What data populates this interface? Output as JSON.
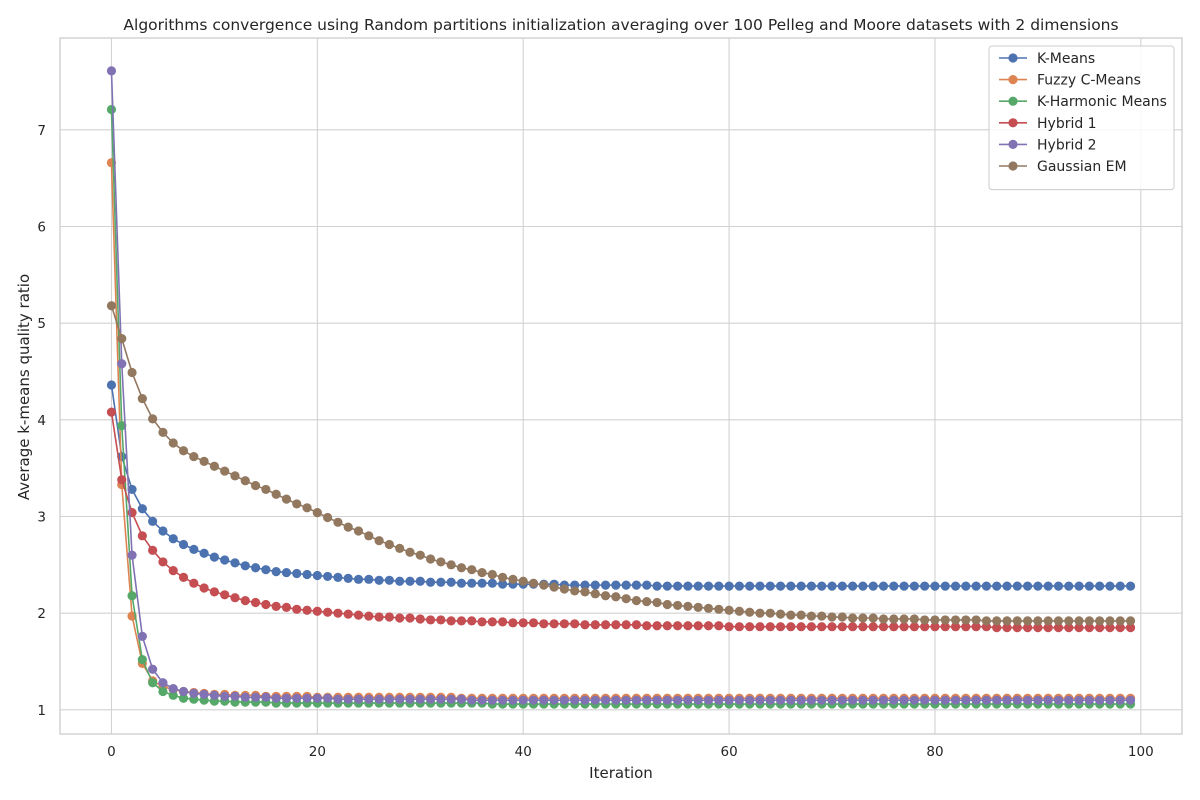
{
  "chart_data": {
    "type": "line",
    "title": "Algorithms convergence using Random partitions initialization averaging over 100 Pelleg and Moore datasets with 2 dimensions",
    "xlabel": "Iteration",
    "ylabel": "Average k-means quality ratio",
    "xlim": [
      -5,
      104
    ],
    "ylim": [
      0.75,
      7.95
    ],
    "xticks": [
      0,
      20,
      40,
      60,
      80,
      100
    ],
    "yticks": [
      1,
      2,
      3,
      4,
      5,
      6,
      7
    ],
    "grid": true,
    "legend_position": "top-right",
    "marker": "circle",
    "series": [
      {
        "name": "K-Means",
        "color": "#4c72b0",
        "values": [
          4.36,
          3.62,
          3.28,
          3.08,
          2.95,
          2.85,
          2.77,
          2.71,
          2.66,
          2.62,
          2.58,
          2.55,
          2.52,
          2.49,
          2.47,
          2.45,
          2.43,
          2.42,
          2.41,
          2.4,
          2.39,
          2.38,
          2.37,
          2.36,
          2.35,
          2.35,
          2.34,
          2.34,
          2.33,
          2.33,
          2.33,
          2.32,
          2.32,
          2.32,
          2.31,
          2.31,
          2.31,
          2.31,
          2.3,
          2.3,
          2.3,
          2.3,
          2.3,
          2.3,
          2.29,
          2.29,
          2.29,
          2.29,
          2.29,
          2.29,
          2.29,
          2.29,
          2.29,
          2.28,
          2.28,
          2.28,
          2.28,
          2.28,
          2.28,
          2.28,
          2.28,
          2.28,
          2.28,
          2.28,
          2.28,
          2.28,
          2.28,
          2.28,
          2.28,
          2.28,
          2.28,
          2.28,
          2.28,
          2.28,
          2.28,
          2.28,
          2.28,
          2.28,
          2.28,
          2.28,
          2.28,
          2.28,
          2.28,
          2.28,
          2.28,
          2.28,
          2.28,
          2.28,
          2.28,
          2.28,
          2.28,
          2.28,
          2.28,
          2.28,
          2.28,
          2.28,
          2.28,
          2.28,
          2.28,
          2.28
        ]
      },
      {
        "name": "Fuzzy C-Means",
        "color": "#dd8452",
        "values": [
          6.66,
          3.33,
          1.97,
          1.48,
          1.3,
          1.24,
          1.21,
          1.19,
          1.18,
          1.17,
          1.16,
          1.16,
          1.15,
          1.15,
          1.15,
          1.14,
          1.14,
          1.14,
          1.14,
          1.14,
          1.13,
          1.13,
          1.13,
          1.13,
          1.13,
          1.13,
          1.13,
          1.13,
          1.13,
          1.13,
          1.13,
          1.13,
          1.13,
          1.13,
          1.12,
          1.12,
          1.12,
          1.12,
          1.12,
          1.12,
          1.12,
          1.12,
          1.12,
          1.12,
          1.12,
          1.12,
          1.12,
          1.12,
          1.12,
          1.12,
          1.12,
          1.12,
          1.12,
          1.12,
          1.12,
          1.12,
          1.12,
          1.12,
          1.12,
          1.12,
          1.12,
          1.12,
          1.12,
          1.12,
          1.12,
          1.12,
          1.12,
          1.12,
          1.12,
          1.12,
          1.12,
          1.12,
          1.12,
          1.12,
          1.12,
          1.12,
          1.12,
          1.12,
          1.12,
          1.12,
          1.12,
          1.12,
          1.12,
          1.12,
          1.12,
          1.12,
          1.12,
          1.12,
          1.12,
          1.12,
          1.12,
          1.12,
          1.12,
          1.12,
          1.12,
          1.12,
          1.12,
          1.12,
          1.12,
          1.12
        ]
      },
      {
        "name": "K-Harmonic Means",
        "color": "#55a868",
        "values": [
          7.21,
          3.94,
          2.18,
          1.52,
          1.28,
          1.19,
          1.15,
          1.12,
          1.11,
          1.1,
          1.09,
          1.09,
          1.08,
          1.08,
          1.08,
          1.08,
          1.07,
          1.07,
          1.07,
          1.07,
          1.07,
          1.07,
          1.07,
          1.07,
          1.07,
          1.07,
          1.07,
          1.07,
          1.07,
          1.07,
          1.07,
          1.07,
          1.07,
          1.07,
          1.07,
          1.07,
          1.07,
          1.06,
          1.06,
          1.06,
          1.06,
          1.06,
          1.06,
          1.06,
          1.06,
          1.06,
          1.06,
          1.06,
          1.06,
          1.06,
          1.06,
          1.06,
          1.06,
          1.06,
          1.06,
          1.06,
          1.06,
          1.06,
          1.06,
          1.06,
          1.06,
          1.06,
          1.06,
          1.06,
          1.06,
          1.06,
          1.06,
          1.06,
          1.06,
          1.06,
          1.06,
          1.06,
          1.06,
          1.06,
          1.06,
          1.06,
          1.06,
          1.06,
          1.06,
          1.06,
          1.06,
          1.06,
          1.06,
          1.06,
          1.06,
          1.06,
          1.06,
          1.06,
          1.06,
          1.06,
          1.06,
          1.06,
          1.06,
          1.06,
          1.06,
          1.06,
          1.06,
          1.06,
          1.06,
          1.06
        ]
      },
      {
        "name": "Hybrid 1",
        "color": "#c44e52",
        "values": [
          4.08,
          3.38,
          3.04,
          2.8,
          2.65,
          2.53,
          2.44,
          2.37,
          2.31,
          2.26,
          2.22,
          2.19,
          2.16,
          2.13,
          2.11,
          2.09,
          2.07,
          2.06,
          2.04,
          2.03,
          2.02,
          2.01,
          2.0,
          1.99,
          1.98,
          1.97,
          1.96,
          1.96,
          1.95,
          1.95,
          1.94,
          1.93,
          1.93,
          1.92,
          1.92,
          1.92,
          1.91,
          1.91,
          1.91,
          1.9,
          1.9,
          1.9,
          1.89,
          1.89,
          1.89,
          1.89,
          1.88,
          1.88,
          1.88,
          1.88,
          1.88,
          1.88,
          1.87,
          1.87,
          1.87,
          1.87,
          1.87,
          1.87,
          1.87,
          1.87,
          1.86,
          1.86,
          1.86,
          1.86,
          1.86,
          1.86,
          1.86,
          1.86,
          1.86,
          1.86,
          1.86,
          1.86,
          1.86,
          1.86,
          1.86,
          1.86,
          1.86,
          1.86,
          1.86,
          1.86,
          1.86,
          1.86,
          1.86,
          1.86,
          1.86,
          1.86,
          1.85,
          1.85,
          1.85,
          1.85,
          1.85,
          1.85,
          1.85,
          1.85,
          1.85,
          1.85,
          1.85,
          1.85,
          1.85,
          1.85
        ]
      },
      {
        "name": "Hybrid 2",
        "color": "#8172b3",
        "values": [
          7.61,
          4.58,
          2.6,
          1.76,
          1.42,
          1.28,
          1.22,
          1.19,
          1.17,
          1.16,
          1.15,
          1.14,
          1.14,
          1.13,
          1.13,
          1.13,
          1.12,
          1.12,
          1.12,
          1.12,
          1.12,
          1.12,
          1.11,
          1.11,
          1.11,
          1.11,
          1.11,
          1.11,
          1.11,
          1.11,
          1.11,
          1.11,
          1.11,
          1.11,
          1.11,
          1.1,
          1.1,
          1.1,
          1.1,
          1.1,
          1.1,
          1.1,
          1.1,
          1.1,
          1.1,
          1.1,
          1.1,
          1.1,
          1.1,
          1.1,
          1.1,
          1.1,
          1.1,
          1.1,
          1.1,
          1.1,
          1.1,
          1.1,
          1.1,
          1.1,
          1.1,
          1.1,
          1.1,
          1.1,
          1.1,
          1.1,
          1.1,
          1.1,
          1.1,
          1.1,
          1.1,
          1.1,
          1.1,
          1.1,
          1.1,
          1.1,
          1.1,
          1.1,
          1.1,
          1.1,
          1.1,
          1.1,
          1.1,
          1.1,
          1.1,
          1.1,
          1.1,
          1.1,
          1.1,
          1.1,
          1.1,
          1.1,
          1.1,
          1.1,
          1.1,
          1.1,
          1.1,
          1.1,
          1.1,
          1.1
        ]
      },
      {
        "name": "Gaussian EM",
        "color": "#937860",
        "values": [
          5.18,
          4.84,
          4.49,
          4.22,
          4.01,
          3.87,
          3.76,
          3.68,
          3.62,
          3.57,
          3.52,
          3.47,
          3.42,
          3.37,
          3.32,
          3.28,
          3.23,
          3.18,
          3.13,
          3.09,
          3.04,
          2.99,
          2.94,
          2.89,
          2.85,
          2.8,
          2.75,
          2.71,
          2.67,
          2.63,
          2.6,
          2.56,
          2.53,
          2.5,
          2.47,
          2.45,
          2.42,
          2.4,
          2.37,
          2.35,
          2.33,
          2.31,
          2.29,
          2.27,
          2.25,
          2.23,
          2.22,
          2.2,
          2.18,
          2.17,
          2.15,
          2.13,
          2.12,
          2.11,
          2.09,
          2.08,
          2.07,
          2.06,
          2.05,
          2.04,
          2.03,
          2.02,
          2.01,
          2.0,
          2.0,
          1.99,
          1.98,
          1.98,
          1.97,
          1.97,
          1.96,
          1.96,
          1.95,
          1.95,
          1.95,
          1.94,
          1.94,
          1.94,
          1.94,
          1.93,
          1.93,
          1.93,
          1.93,
          1.93,
          1.93,
          1.92,
          1.92,
          1.92,
          1.92,
          1.92,
          1.92,
          1.92,
          1.92,
          1.92,
          1.92,
          1.92,
          1.92,
          1.92,
          1.92,
          1.92
        ]
      }
    ]
  }
}
